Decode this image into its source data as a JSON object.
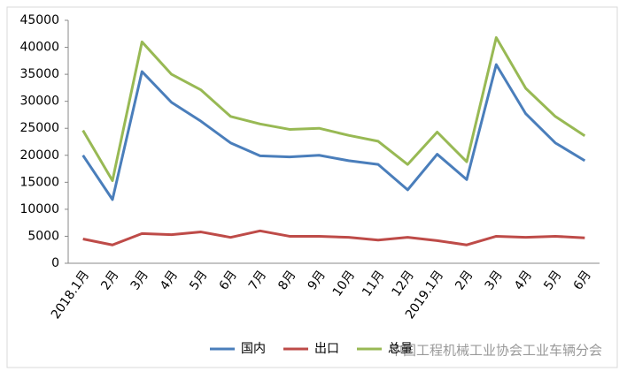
{
  "chart_data": {
    "type": "line",
    "categories": [
      "2018.1月",
      "2月",
      "3月",
      "4月",
      "5月",
      "6月",
      "7月",
      "8月",
      "9月",
      "10月",
      "11月",
      "12月",
      "2019.1月",
      "2月",
      "3月",
      "4月",
      "5月",
      "6月"
    ],
    "series": [
      {
        "name": "国内",
        "color": "#4a7ebb",
        "values": [
          20000,
          11800,
          35500,
          29800,
          26300,
          22300,
          19900,
          19700,
          20000,
          19000,
          18300,
          13600,
          20200,
          15500,
          36800,
          27700,
          22300,
          19000
        ]
      },
      {
        "name": "出口",
        "color": "#be4b48",
        "values": [
          4500,
          3400,
          5500,
          5300,
          5800,
          4800,
          6000,
          5000,
          5000,
          4800,
          4300,
          4800,
          4200,
          3400,
          5000,
          4800,
          5000,
          4700
        ]
      },
      {
        "name": "总量",
        "color": "#98b954",
        "values": [
          24600,
          15300,
          41000,
          35000,
          32100,
          27200,
          25800,
          24800,
          25000,
          23700,
          22600,
          18300,
          24300,
          18800,
          41800,
          32400,
          27200,
          23600
        ]
      }
    ],
    "ylim": [
      0,
      45000
    ],
    "yticks": [
      0,
      5000,
      10000,
      15000,
      20000,
      25000,
      30000,
      35000,
      40000,
      45000
    ],
    "grid": false,
    "legend": "bottom",
    "watermark": "中国工程机械工业协会工业车辆分会"
  }
}
